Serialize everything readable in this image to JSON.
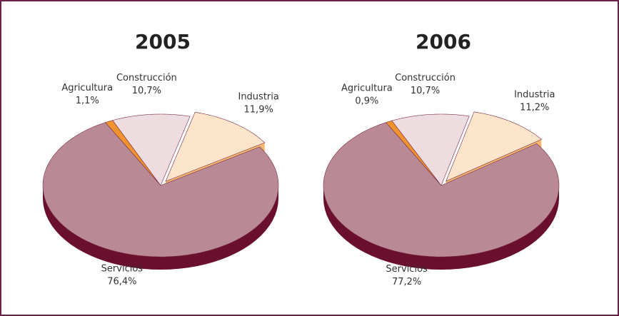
{
  "chart_data": [
    {
      "type": "pie",
      "title": "2005",
      "categories": [
        "Agricultura",
        "Construcción",
        "Industria",
        "Servicios"
      ],
      "values": [
        1.1,
        10.7,
        11.9,
        76.4
      ],
      "value_labels": [
        "1,1%",
        "10,7%",
        "11,9%",
        "76,4%"
      ],
      "colors": [
        "#f0922e",
        "#eddde0",
        "#fde5cc",
        "#b98a96"
      ],
      "side_colors": [
        "#c0651a",
        "#7a2a45",
        "#f5b870",
        "#6b0f2e"
      ]
    },
    {
      "type": "pie",
      "title": "2006",
      "categories": [
        "Agricultura",
        "Construcción",
        "Industria",
        "Servicios"
      ],
      "values": [
        0.9,
        10.7,
        11.2,
        77.2
      ],
      "value_labels": [
        "0,9%",
        "10,7%",
        "11,2%",
        "77,2%"
      ],
      "colors": [
        "#f0922e",
        "#eddde0",
        "#fde5cc",
        "#b98a96"
      ],
      "side_colors": [
        "#c0651a",
        "#7a2a45",
        "#f5b870",
        "#6b0f2e"
      ]
    }
  ]
}
